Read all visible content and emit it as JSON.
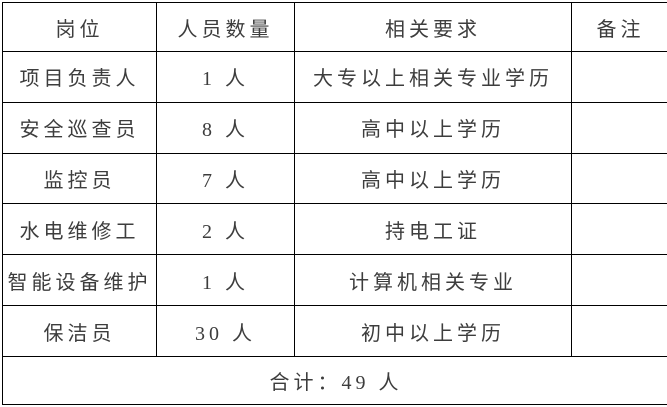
{
  "page": {
    "background_color": "#ffffff",
    "border_color": "#000000",
    "text_color": "#3d3d3d"
  },
  "table": {
    "headers": [
      "岗位",
      "人员数量",
      "相关要求",
      "备注"
    ],
    "rows": [
      {
        "position": "项目负责人",
        "count": "1 人",
        "requirement": "大专以上相关专业学历",
        "note": ""
      },
      {
        "position": "安全巡查员",
        "count": "8 人",
        "requirement": "高中以上学历",
        "note": ""
      },
      {
        "position": "监控员",
        "count": "7 人",
        "requirement": "高中以上学历",
        "note": ""
      },
      {
        "position": "水电维修工",
        "count": "2 人",
        "requirement": "持电工证",
        "note": ""
      },
      {
        "position": "智能设备维护",
        "count": "1 人",
        "requirement": "计算机相关专业",
        "note": ""
      },
      {
        "position": "保洁员",
        "count": "30 人",
        "requirement": "初中以上学历",
        "note": ""
      }
    ],
    "footer": "合计：49 人"
  }
}
